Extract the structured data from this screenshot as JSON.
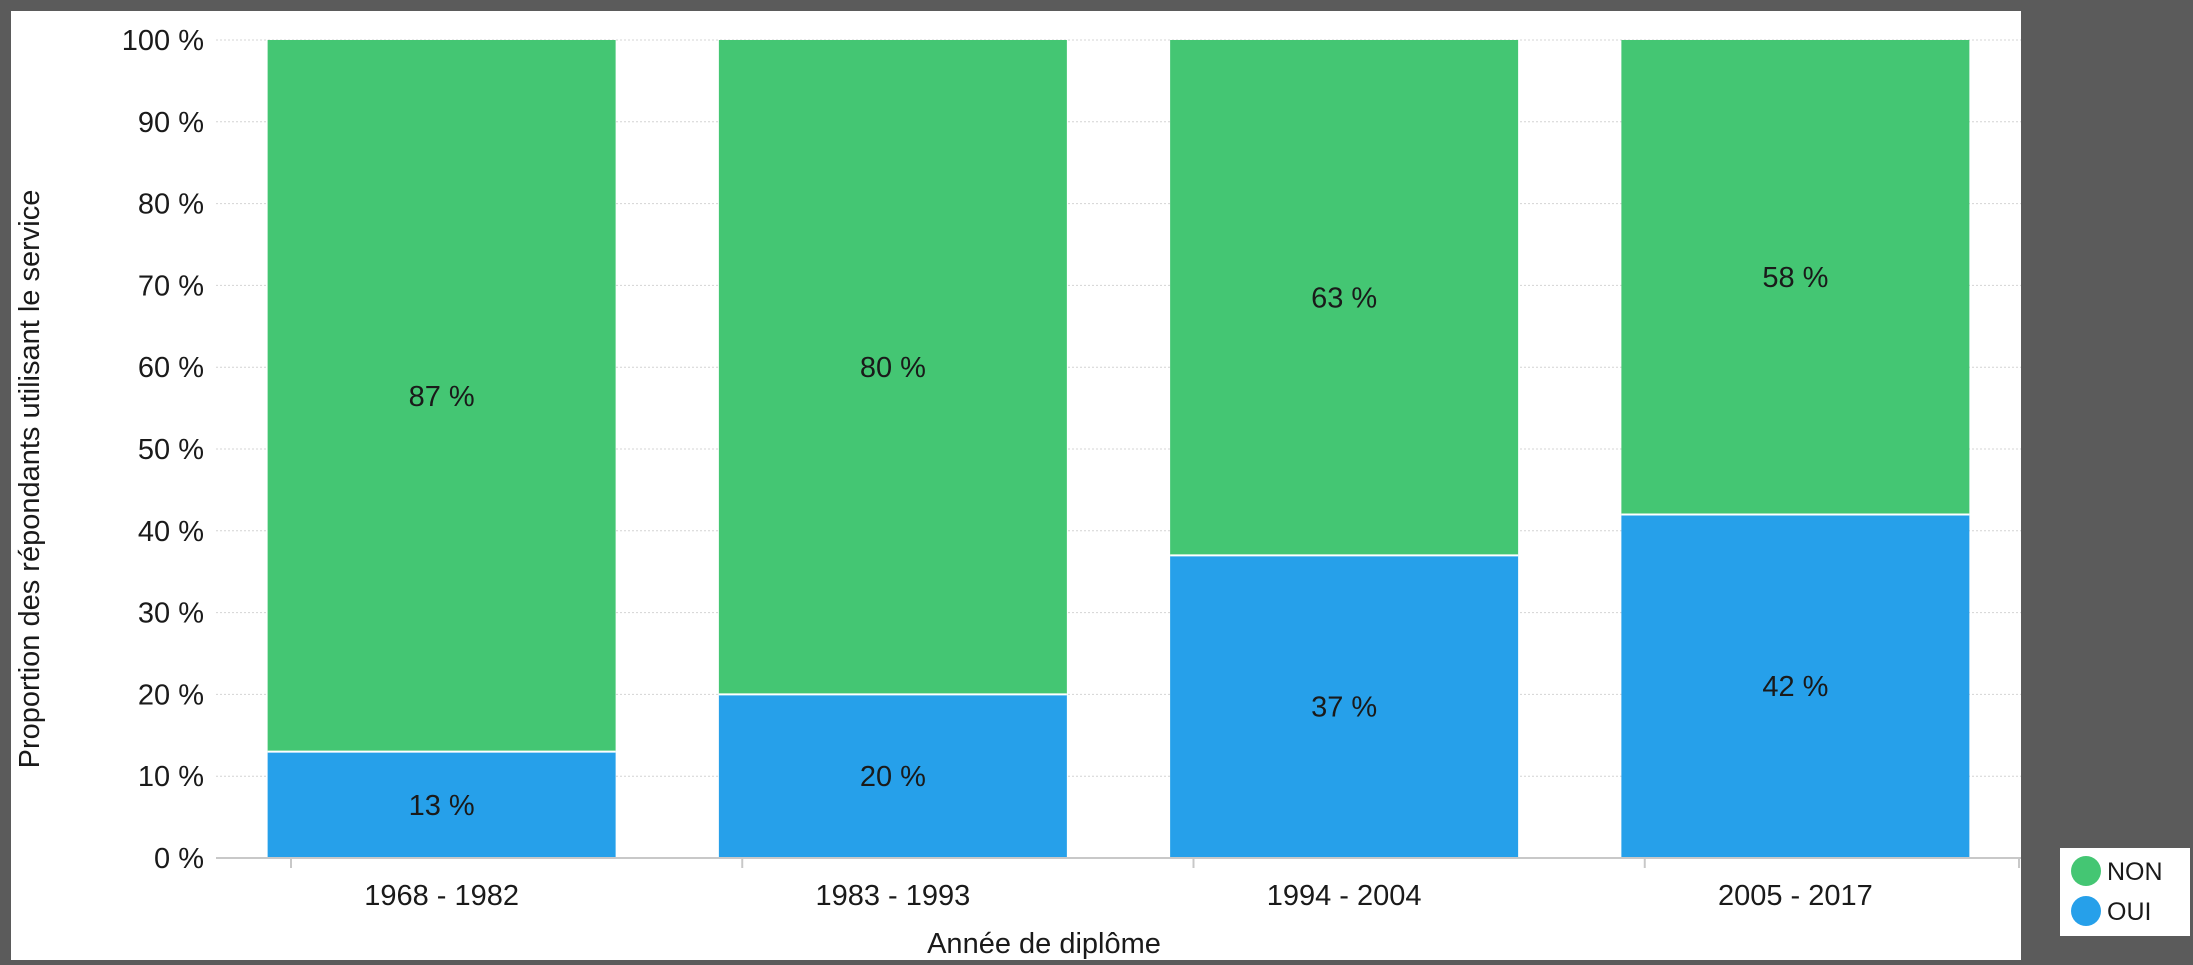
{
  "chart_data": {
    "type": "bar",
    "stacked": true,
    "categories": [
      "1968 - 1982",
      "1983 - 1993",
      "1994 - 2004",
      "2005 - 2017"
    ],
    "series": [
      {
        "name": "OUI",
        "values": [
          13,
          20,
          37,
          42
        ],
        "labels": [
          "13 %",
          "20 %",
          "37 %",
          "42 %"
        ],
        "color": "#26a0ea"
      },
      {
        "name": "NON",
        "values": [
          87,
          80,
          63,
          58
        ],
        "labels": [
          "87 %",
          "80 %",
          "63 %",
          "58 %"
        ],
        "color": "#44c673"
      }
    ],
    "xlabel": "Année de diplôme",
    "ylabel": "Proportion des répondants utilisant le service",
    "ylim": [
      0,
      100
    ],
    "yticks": [
      0,
      10,
      20,
      30,
      40,
      50,
      60,
      70,
      80,
      90,
      100
    ],
    "ytick_labels": [
      "0 %",
      "10 %",
      "20 %",
      "30 %",
      "40 %",
      "50 %",
      "60 %",
      "70 %",
      "80 %",
      "90 %",
      "100 %"
    ],
    "grid": true,
    "legend": {
      "position": "bottom-right",
      "order": [
        "NON",
        "OUI"
      ]
    }
  }
}
